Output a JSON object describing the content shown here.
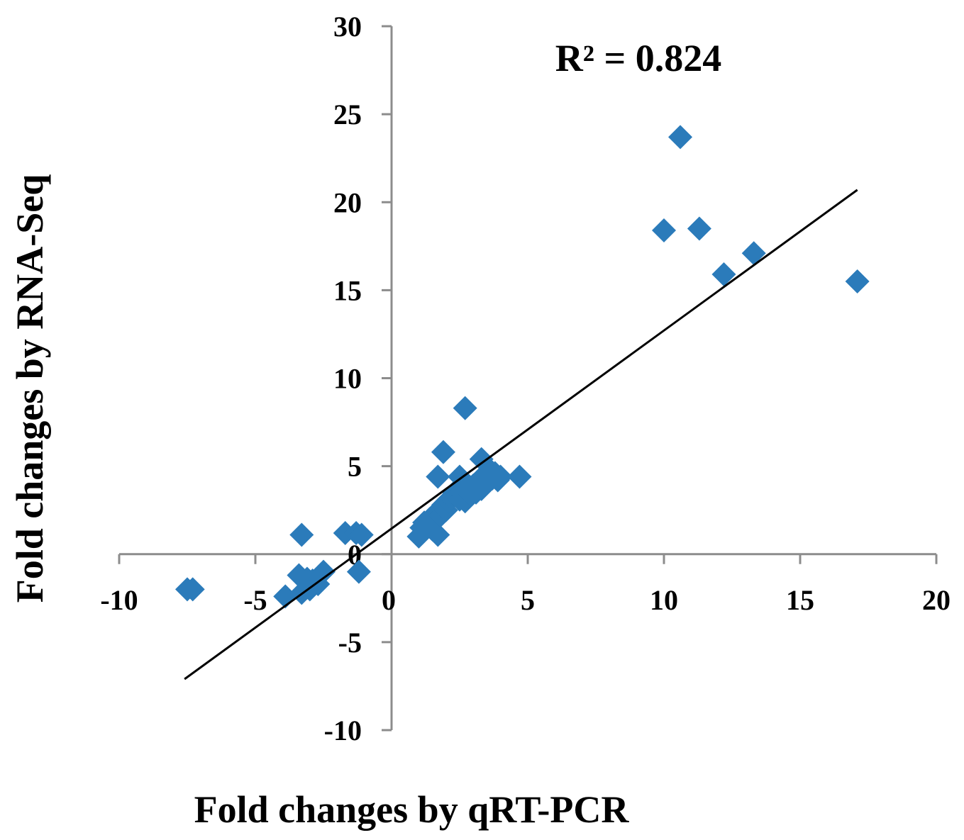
{
  "chart_data": {
    "type": "scatter",
    "title": "",
    "xlabel": "Fold changes by qRT-PCR",
    "ylabel": "Fold changes by RNA-Seq",
    "xlim": [
      -10,
      20
    ],
    "ylim": [
      -10,
      30
    ],
    "x_ticks": [
      "-10",
      "-5",
      "0",
      "5",
      "10",
      "15",
      "20"
    ],
    "y_ticks": [
      "30",
      "25",
      "20",
      "15",
      "10",
      "5",
      "0",
      "-5",
      "-10"
    ],
    "annotation": "R² = 0.824",
    "grid": false,
    "legend": "none",
    "marker": "diamond",
    "colors": {
      "points": "#2b7bba",
      "trendline": "#000000",
      "axes": "#8c8c8c"
    },
    "trendline": {
      "x": [
        -7.6,
        17.1
      ],
      "y": [
        -7.1,
        20.7
      ]
    },
    "series": [
      {
        "x": [
          -7.5,
          -7.3,
          -3.9,
          -3.3,
          -3.1,
          -2.9,
          -2.7,
          -2.5,
          -3.3,
          -3.4,
          -3.0,
          -1.7,
          -1.3,
          -1.2,
          -1.1,
          1.0,
          1.1,
          1.2,
          1.3,
          1.4,
          1.5,
          1.6,
          1.7,
          1.8,
          1.9,
          2.0,
          2.1,
          2.2,
          2.3,
          2.4,
          2.5,
          2.6,
          2.7,
          2.8,
          2.9,
          3.0,
          3.1,
          3.2,
          3.3,
          3.4,
          3.5,
          3.6,
          3.7,
          3.8,
          3.9,
          4.0,
          1.7,
          1.9,
          2.5,
          2.7,
          3.3,
          4.7,
          10.0,
          10.6,
          11.3,
          12.2,
          13.3,
          17.1
        ],
        "y": [
          -2.0,
          -2.0,
          -2.4,
          -2.2,
          -1.4,
          -1.5,
          -1.7,
          -1.0,
          1.1,
          -1.2,
          -2.0,
          1.2,
          1.2,
          -1.0,
          1.1,
          1.0,
          1.5,
          1.8,
          1.6,
          2.0,
          1.4,
          2.3,
          1.1,
          2.2,
          2.8,
          2.5,
          3.0,
          3.2,
          3.5,
          3.3,
          3.1,
          3.6,
          3.0,
          3.8,
          3.4,
          3.9,
          3.5,
          4.0,
          3.7,
          4.5,
          4.1,
          4.8,
          4.3,
          4.6,
          4.2,
          4.4,
          4.4,
          5.8,
          4.4,
          8.3,
          5.4,
          4.4,
          18.4,
          23.7,
          18.5,
          15.9,
          17.1,
          15.5
        ]
      }
    ]
  }
}
